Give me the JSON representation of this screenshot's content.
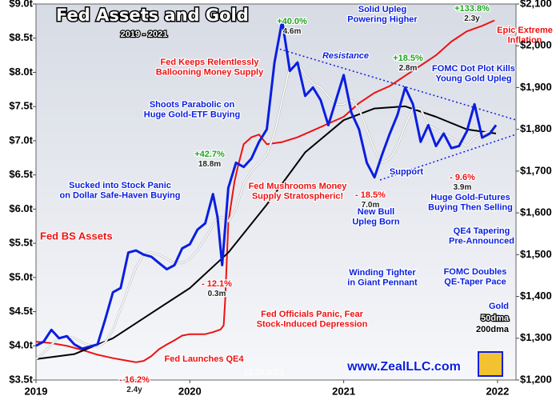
{
  "chart_data": {
    "type": "line",
    "title": "Fed Assets and Gold",
    "subtitle": "2019 - 2021",
    "date": "12.29.2021",
    "source": "www.ZealLLC.com",
    "xlim": [
      2019,
      2022.12
    ],
    "xticks": [
      2019,
      2020,
      2021,
      2022
    ],
    "ylim": [
      3.5,
      9.0
    ],
    "yticks": [
      {
        "value": 3.5,
        "label": "$3.5t"
      },
      {
        "value": 4.0,
        "label": "$4.0t"
      },
      {
        "value": 4.5,
        "label": "$4.5t"
      },
      {
        "value": 5.0,
        "label": "$5.0t"
      },
      {
        "value": 5.5,
        "label": "$5.5t"
      },
      {
        "value": 6.0,
        "label": "$6.0t"
      },
      {
        "value": 6.5,
        "label": "$6.5t"
      },
      {
        "value": 7.0,
        "label": "$7.0t"
      },
      {
        "value": 7.5,
        "label": "$7.5t"
      },
      {
        "value": 8.0,
        "label": "$8.0t"
      },
      {
        "value": 8.5,
        "label": "$8.5t"
      },
      {
        "value": 9.0,
        "label": "$9.0t"
      }
    ],
    "y2lim": [
      1200,
      2100
    ],
    "y2ticks": [
      {
        "value": 1200,
        "label": "$1,200"
      },
      {
        "value": 1300,
        "label": "$1,300"
      },
      {
        "value": 1400,
        "label": "$1,400"
      },
      {
        "value": 1500,
        "label": "$1,500"
      },
      {
        "value": 1600,
        "label": "$1,600"
      },
      {
        "value": 1700,
        "label": "$1,700"
      },
      {
        "value": 1800,
        "label": "$1,800"
      },
      {
        "value": 1900,
        "label": "$1,900"
      },
      {
        "value": 2000,
        "label": "$2,000"
      },
      {
        "value": 2100,
        "label": "$2,100"
      }
    ],
    "grid": false,
    "series": [
      {
        "name": "Fed BS Assets",
        "color": "#ee1111",
        "axis": "y",
        "x": [
          2019.0,
          2019.1,
          2019.2,
          2019.3,
          2019.4,
          2019.5,
          2019.6,
          2019.65,
          2019.7,
          2019.75,
          2019.8,
          2019.85,
          2019.9,
          2019.95,
          2020.0,
          2020.1,
          2020.15,
          2020.2,
          2020.22,
          2020.23,
          2020.24,
          2020.25,
          2020.27,
          2020.29,
          2020.31,
          2020.35,
          2020.4,
          2020.45,
          2020.5,
          2020.6,
          2020.7,
          2020.8,
          2020.9,
          2021.0,
          2021.1,
          2021.2,
          2021.3,
          2021.4,
          2021.5,
          2021.6,
          2021.7,
          2021.8,
          2021.9,
          2021.98
        ],
        "values": [
          4.06,
          4.04,
          4.0,
          3.94,
          3.87,
          3.82,
          3.78,
          3.76,
          3.78,
          3.85,
          3.95,
          4.02,
          4.08,
          4.15,
          4.17,
          4.17,
          4.2,
          4.24,
          4.3,
          4.67,
          5.25,
          5.8,
          6.1,
          6.4,
          6.6,
          6.95,
          7.05,
          7.09,
          6.95,
          6.98,
          7.05,
          7.15,
          7.25,
          7.35,
          7.55,
          7.7,
          7.8,
          7.95,
          8.1,
          8.25,
          8.45,
          8.6,
          8.68,
          8.76
        ]
      },
      {
        "name": "200dma",
        "color": "#000000",
        "axis": "y2",
        "x": [
          2019.0,
          2019.25,
          2019.5,
          2019.75,
          2020.0,
          2020.25,
          2020.5,
          2020.75,
          2021.0,
          2021.2,
          2021.4,
          2021.6,
          2021.8,
          2021.99
        ],
        "values": [
          1250,
          1262,
          1300,
          1360,
          1420,
          1505,
          1620,
          1745,
          1822,
          1850,
          1855,
          1830,
          1800,
          1790
        ]
      },
      {
        "name": "50dma",
        "color": "#ffffff",
        "axis": "y2",
        "x": [
          2019.0,
          2019.05,
          2019.1,
          2019.15,
          2019.2,
          2019.25,
          2019.3,
          2019.35,
          2019.4,
          2019.45,
          2019.5,
          2019.55,
          2019.6,
          2019.65,
          2019.7,
          2019.75,
          2019.8,
          2019.85,
          2019.9,
          2019.95,
          2020.0,
          2020.05,
          2020.1,
          2020.15,
          2020.18,
          2020.21,
          2020.25,
          2020.3,
          2020.35,
          2020.4,
          2020.45,
          2020.5,
          2020.55,
          2020.6,
          2020.65,
          2020.7,
          2020.75,
          2020.8,
          2020.85,
          2020.9,
          2020.95,
          2021.0,
          2021.05,
          2021.1,
          2021.15,
          2021.2,
          2021.25,
          2021.3,
          2021.35,
          2021.4,
          2021.45,
          2021.5,
          2021.55,
          2021.6,
          2021.65,
          2021.7,
          2021.75,
          2021.8,
          2021.85,
          2021.9,
          2021.95,
          2021.99
        ],
        "values": [
          1250,
          1265,
          1285,
          1300,
          1305,
          1300,
          1290,
          1283,
          1280,
          1290,
          1320,
          1370,
          1420,
          1470,
          1500,
          1505,
          1500,
          1490,
          1480,
          1480,
          1490,
          1510,
          1540,
          1570,
          1590,
          1590,
          1580,
          1610,
          1670,
          1700,
          1720,
          1740,
          1790,
          1870,
          1950,
          1960,
          1930,
          1910,
          1900,
          1880,
          1860,
          1860,
          1870,
          1850,
          1800,
          1750,
          1720,
          1730,
          1760,
          1810,
          1850,
          1850,
          1810,
          1800,
          1790,
          1780,
          1770,
          1760,
          1780,
          1790,
          1795,
          1800
        ]
      },
      {
        "name": "Gold",
        "color": "#0a1ee0",
        "axis": "y2",
        "x": [
          2019.0,
          2019.05,
          2019.1,
          2019.15,
          2019.2,
          2019.25,
          2019.3,
          2019.35,
          2019.4,
          2019.45,
          2019.5,
          2019.55,
          2019.6,
          2019.65,
          2019.7,
          2019.75,
          2019.8,
          2019.85,
          2019.9,
          2019.95,
          2020.0,
          2020.05,
          2020.1,
          2020.15,
          2020.18,
          2020.21,
          2020.25,
          2020.3,
          2020.35,
          2020.4,
          2020.45,
          2020.5,
          2020.55,
          2020.6,
          2020.65,
          2020.7,
          2020.75,
          2020.8,
          2020.85,
          2020.9,
          2020.95,
          2021.0,
          2021.05,
          2021.1,
          2021.15,
          2021.2,
          2021.25,
          2021.3,
          2021.35,
          2021.4,
          2021.45,
          2021.5,
          2021.55,
          2021.6,
          2021.65,
          2021.7,
          2021.75,
          2021.8,
          2021.85,
          2021.9,
          2021.95,
          2021.99
        ],
        "values": [
          1282,
          1292,
          1320,
          1300,
          1305,
          1285,
          1275,
          1280,
          1285,
          1345,
          1410,
          1420,
          1505,
          1510,
          1500,
          1495,
          1480,
          1465,
          1475,
          1515,
          1525,
          1560,
          1575,
          1645,
          1590,
          1475,
          1660,
          1720,
          1710,
          1730,
          1770,
          1800,
          1960,
          2060,
          1940,
          1960,
          1880,
          1900,
          1870,
          1810,
          1870,
          1930,
          1840,
          1800,
          1720,
          1685,
          1740,
          1790,
          1835,
          1900,
          1860,
          1770,
          1810,
          1760,
          1790,
          1755,
          1760,
          1795,
          1860,
          1780,
          1790,
          1810
        ]
      }
    ],
    "annotations": [
      {
        "lines": [
          "Solid Upleg",
          "Powering Higher"
        ],
        "colors": [
          "#0a1ee0",
          "#0a1ee0"
        ]
      },
      {
        "lines": [
          "FOMC Dot Plot Kills",
          "Young Gold Upleg"
        ],
        "colors": [
          "#0a1ee0",
          "#0a1ee0"
        ]
      },
      {
        "lines": [
          "Fed Keeps Relentlessly",
          "Ballooning Money Supply"
        ],
        "colors": [
          "#ee1111",
          "#ee1111"
        ]
      },
      {
        "lines": [
          "Shoots Parabolic on",
          "Huge Gold-ETF Buying"
        ],
        "colors": [
          "#0a1ee0",
          "#0a1ee0"
        ]
      },
      {
        "lines": [
          "Resistance"
        ],
        "colors": [
          "#0a1ee0"
        ]
      },
      {
        "lines": [
          "Support"
        ],
        "colors": [
          "#0a1ee0"
        ]
      },
      {
        "lines": [
          "Sucked into Stock Panic",
          "on Dollar Safe-Haven Buying"
        ],
        "colors": [
          "#0a1ee0",
          "#0a1ee0"
        ]
      },
      {
        "lines": [
          "Fed Mushrooms Money",
          "Supply Stratospheric!"
        ],
        "colors": [
          "#ee1111",
          "#ee1111"
        ]
      },
      {
        "lines": [
          "New Bull",
          "Upleg Born"
        ],
        "colors": [
          "#0a1ee0",
          "#0a1ee0"
        ]
      },
      {
        "lines": [
          "Huge Gold-Futures",
          "Buying Then Selling"
        ],
        "colors": [
          "#0a1ee0",
          "#0a1ee0"
        ]
      },
      {
        "lines": [
          "QE4 Tapering",
          "Pre-Announced"
        ],
        "colors": [
          "#0a1ee0",
          "#0a1ee0"
        ]
      },
      {
        "lines": [
          "Winding Tighter",
          "in Giant Pennant"
        ],
        "colors": [
          "#0a1ee0",
          "#0a1ee0"
        ]
      },
      {
        "lines": [
          "FOMC Doubles",
          "QE-Taper Pace"
        ],
        "colors": [
          "#0a1ee0",
          "#0a1ee0"
        ]
      },
      {
        "lines": [
          "Fed Officials Panic, Fear",
          "Stock-Induced Depression"
        ],
        "colors": [
          "#ee1111",
          "#ee1111"
        ]
      },
      {
        "lines": [
          "Fed Launches QE4"
        ],
        "colors": [
          "#ee1111"
        ]
      },
      {
        "lines": [
          "Epic Extreme",
          "Inflation"
        ],
        "colors": [
          "#ee1111",
          "#ee1111"
        ]
      },
      {
        "lines": [
          "+40.0%",
          "4.6m"
        ],
        "colors": [
          "#1fa51f",
          "#222222"
        ]
      },
      {
        "lines": [
          "+42.7%",
          "18.8m"
        ],
        "colors": [
          "#1fa51f",
          "#222222"
        ]
      },
      {
        "lines": [
          "+18.5%",
          "2.8m"
        ],
        "colors": [
          "#1fa51f",
          "#222222"
        ]
      },
      {
        "lines": [
          "+133.8%",
          "2.3y"
        ],
        "colors": [
          "#1fa51f",
          "#222222"
        ]
      },
      {
        "lines": [
          "- 12.1%",
          "0.3m"
        ],
        "colors": [
          "#ee1111",
          "#222222"
        ]
      },
      {
        "lines": [
          "- 18.5%",
          "7.0m"
        ],
        "colors": [
          "#ee1111",
          "#222222"
        ]
      },
      {
        "lines": [
          "- 9.6%",
          "3.9m"
        ],
        "colors": [
          "#ee1111",
          "#222222"
        ]
      },
      {
        "lines": [
          "- 16.2%",
          "2.4y"
        ],
        "colors": [
          "#ee1111",
          "#222222"
        ]
      }
    ]
  }
}
